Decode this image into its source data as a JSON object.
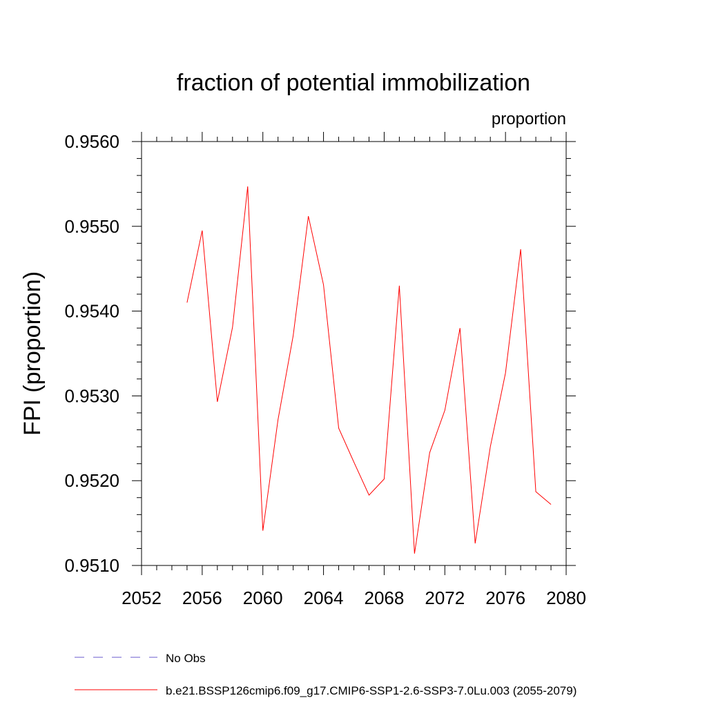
{
  "chart_data": {
    "type": "line",
    "title": "fraction of potential immobilization",
    "units_label": "proportion",
    "ylabel": "FPI  (proportion)",
    "xlabel": "",
    "xlim": [
      2052,
      2080
    ],
    "ylim": [
      0.951,
      0.956
    ],
    "x_ticks": [
      2052,
      2056,
      2060,
      2064,
      2068,
      2072,
      2076,
      2080
    ],
    "x_tick_labels": [
      "2052",
      "2056",
      "2060",
      "2064",
      "2068",
      "2072",
      "2076",
      "2080"
    ],
    "y_ticks": [
      0.951,
      0.952,
      0.953,
      0.954,
      0.955,
      0.956
    ],
    "y_tick_labels": [
      "0.9510",
      "0.9520",
      "0.9530",
      "0.9540",
      "0.9550",
      "0.9560"
    ],
    "x_minor_step": 1,
    "y_minor_step": 0.0002,
    "grid": false,
    "legend_position": "bottom",
    "series": [
      {
        "name": "b.e21.BSSP126cmip6.f09_g17.CMIP6-SSP1-2.6-SSP3-7.0Lu.003 (2055-2079)",
        "color": "#ff0000",
        "dash": "solid",
        "x": [
          2055,
          2056,
          2057,
          2058,
          2059,
          2060,
          2061,
          2062,
          2063,
          2064,
          2065,
          2066,
          2067,
          2068,
          2069,
          2070,
          2071,
          2072,
          2073,
          2074,
          2075,
          2076,
          2077,
          2078,
          2079
        ],
        "values": [
          0.9541,
          0.95495,
          0.95293,
          0.95381,
          0.95547,
          0.95141,
          0.95272,
          0.95371,
          0.95512,
          0.95431,
          0.95262,
          0.95222,
          0.95183,
          0.95202,
          0.9543,
          0.95114,
          0.95233,
          0.95283,
          0.9538,
          0.95126,
          0.9524,
          0.95327,
          0.95473,
          0.95187,
          0.95172
        ]
      }
    ],
    "legend": [
      {
        "label": "No Obs",
        "color": "#6a5acd",
        "dash": "dashed"
      },
      {
        "label": "b.e21.BSSP126cmip6.f09_g17.CMIP6-SSP1-2.6-SSP3-7.0Lu.003 (2055-2079)",
        "color": "#ff0000",
        "dash": "solid"
      }
    ]
  }
}
